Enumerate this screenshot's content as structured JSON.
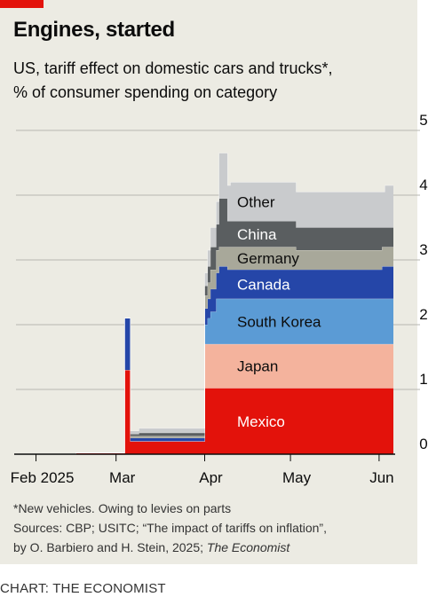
{
  "header": {
    "title": "Engines, started",
    "subtitle_line1": "US, tariff effect on domestic cars and trucks*,",
    "subtitle_line2": "% of consumer spending on category"
  },
  "notes": {
    "footnote": "*New vehicles. Owing to levies on parts",
    "sources_line1": "Sources: CBP; USITC; “The impact of tariffs on inflation”,",
    "sources_line2_prefix": "by O. Barbiero and H. Stein, 2025; ",
    "sources_line2_italic": "The Economist"
  },
  "credit": "CHART: THE ECONOMIST",
  "chart_data": {
    "type": "area",
    "stacked": true,
    "step": true,
    "x_ticks": [
      {
        "label": "Feb 2025",
        "date": "2025-02-01"
      },
      {
        "label": "Mar",
        "date": "2025-03-01"
      },
      {
        "label": "Apr",
        "date": "2025-04-01"
      },
      {
        "label": "May",
        "date": "2025-05-01"
      },
      {
        "label": "Jun",
        "date": "2025-06-01"
      }
    ],
    "y_ticks": [
      0,
      1,
      2,
      3,
      4,
      5
    ],
    "ylim": [
      0,
      5
    ],
    "y_axis_side": "right",
    "grid": true,
    "legend": "labels inside areas",
    "x": [
      "2025-01-25",
      "2025-02-04",
      "2025-02-07",
      "2025-02-15",
      "2025-03-04",
      "2025-03-06",
      "2025-03-09",
      "2025-03-31",
      "2025-04-01",
      "2025-04-02",
      "2025-04-03",
      "2025-04-05",
      "2025-04-06",
      "2025-04-09",
      "2025-04-10",
      "2025-05-03",
      "2025-06-01",
      "2025-06-02",
      "2025-06-03"
    ],
    "series": [
      {
        "name": "Mexico",
        "color": "#e3120b",
        "values": [
          0,
          0,
          0,
          0.02,
          1.3,
          0.2,
          0.2,
          0.2,
          1.02,
          1.02,
          1.02,
          1.02,
          1.02,
          1.02,
          1.02,
          1.02,
          1.02,
          1.02,
          1.02
        ]
      },
      {
        "name": "Japan",
        "color": "#f4b39d",
        "values": [
          0,
          0,
          0,
          0,
          0,
          0,
          0,
          0,
          0.68,
          0.68,
          0.68,
          0.68,
          0.68,
          0.68,
          0.68,
          0.68,
          0.68,
          0.68,
          0.68
        ]
      },
      {
        "name": "South Korea",
        "color": "#5b9bd5",
        "values": [
          0,
          0,
          0,
          0,
          0,
          0,
          0,
          0,
          0.3,
          0.4,
          0.5,
          0.7,
          0.7,
          0.7,
          0.7,
          0.7,
          0.7,
          0.7,
          0.7
        ]
      },
      {
        "name": "Canada",
        "color": "#2546a8",
        "values": [
          0,
          0,
          0,
          0,
          0.8,
          0.05,
          0.05,
          0.05,
          0.25,
          0.3,
          0.35,
          0.4,
          0.5,
          0.45,
          0.45,
          0.45,
          0.45,
          0.5,
          0.5
        ]
      },
      {
        "name": "Germany",
        "color": "#a8a89a",
        "values": [
          0,
          0,
          0,
          0,
          0,
          0.03,
          0.03,
          0.03,
          0.2,
          0.25,
          0.3,
          0.35,
          0.3,
          0.35,
          0.35,
          0.3,
          0.3,
          0.3,
          0.3
        ]
      },
      {
        "name": "China",
        "color": "#5a5e60",
        "values": [
          0,
          0,
          0,
          0,
          0,
          0.03,
          0.05,
          0.05,
          0.15,
          0.25,
          0.35,
          0.4,
          0.75,
          0.4,
          0.4,
          0.35,
          0.35,
          0.3,
          0.3
        ]
      },
      {
        "name": "Other",
        "color": "#c9cbcd",
        "values": [
          0,
          0,
          0,
          0,
          0,
          0.05,
          0.07,
          0.07,
          0.2,
          0.25,
          0.3,
          0.35,
          0.7,
          0.55,
          0.6,
          0.55,
          0.55,
          0.55,
          0.65
        ]
      }
    ],
    "labels": [
      {
        "name": "Mexico",
        "text_color": "#ffffff"
      },
      {
        "name": "Japan",
        "text_color": "#0c0c0c"
      },
      {
        "name": "South Korea",
        "text_color": "#0c0c0c"
      },
      {
        "name": "Canada",
        "text_color": "#ffffff"
      },
      {
        "name": "Germany",
        "text_color": "#0c0c0c"
      },
      {
        "name": "China",
        "text_color": "#ffffff"
      },
      {
        "name": "Other",
        "text_color": "#0c0c0c"
      }
    ]
  }
}
